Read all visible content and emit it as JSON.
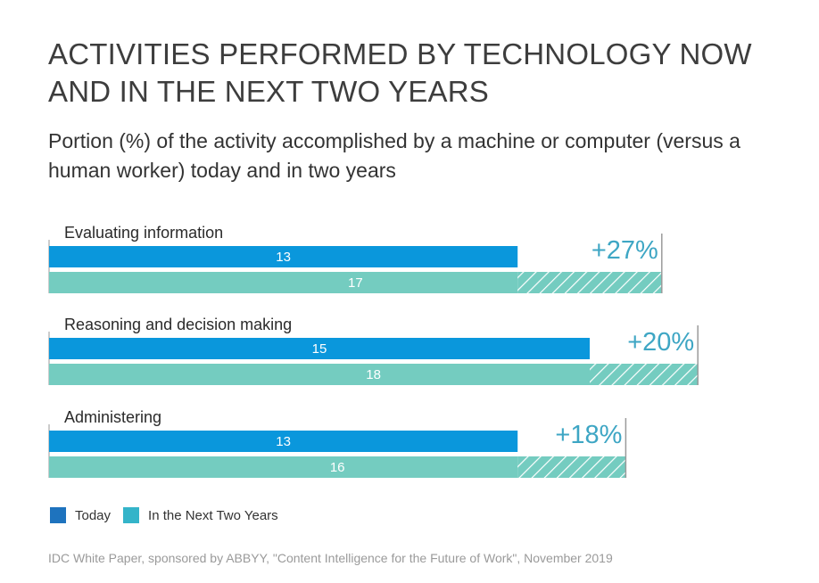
{
  "chart_data": {
    "type": "bar",
    "title": "ACTIVITIES PERFORMED BY TECHNOLOGY NOW AND IN THE NEXT TWO YEARS",
    "subtitle": "Portion (%) of the activity accomplished by a machine or computer (versus a human worker) today and in two years",
    "categories": [
      "Evaluating information",
      "Reasoning and decision making",
      "Administering"
    ],
    "series": [
      {
        "name": "Today",
        "values": [
          13,
          15,
          13
        ],
        "color": "#0a97dc"
      },
      {
        "name": "In the Next Two Years",
        "values": [
          17,
          18,
          16
        ],
        "color": "#74ccc0"
      }
    ],
    "increase_labels": [
      "+27%",
      "+20%",
      "+18%"
    ],
    "increase_color": "#3ea6c4",
    "legend_colors": [
      "#1e73be",
      "#34b4c9"
    ],
    "xlim": [
      0,
      18
    ],
    "source": "IDC White Paper, sponsored by ABBYY, \"Content Intelligence for the Future of Work\", November 2019"
  }
}
